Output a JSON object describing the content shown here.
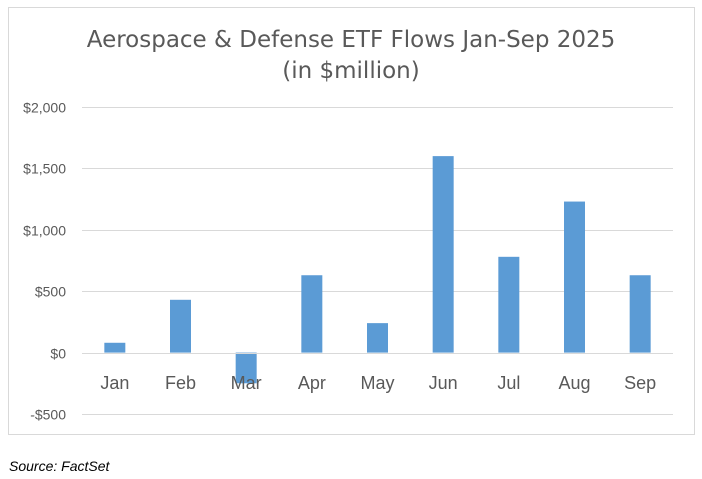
{
  "chart_data": {
    "type": "bar",
    "title": "Aerospace & Defense ETF Flows Jan-Sep 2025",
    "subtitle": "(in $million)",
    "categories": [
      "Jan",
      "Feb",
      "Mar",
      "Apr",
      "May",
      "Jun",
      "Jul",
      "Aug",
      "Sep"
    ],
    "series": [
      {
        "name": "ETF Flows",
        "values": [
          80,
          430,
          -250,
          630,
          240,
          1600,
          780,
          1230,
          630
        ]
      }
    ],
    "xlabel": "",
    "ylabel": "",
    "ylim": [
      -500,
      2000
    ],
    "yticks": [
      2000,
      1500,
      1000,
      500,
      0,
      -500
    ],
    "ytick_labels": [
      "$2,000",
      "$1,500",
      "$1,000",
      "$500",
      "$0",
      "-$500"
    ],
    "grid": true,
    "legend": "none",
    "bar_color": "#5b9bd5"
  },
  "source": "Source: FactSet",
  "colors": {
    "bar": "#5b9bd5",
    "grid": "#d9d9d9",
    "axis_text": "#595959",
    "title": "#595959"
  }
}
